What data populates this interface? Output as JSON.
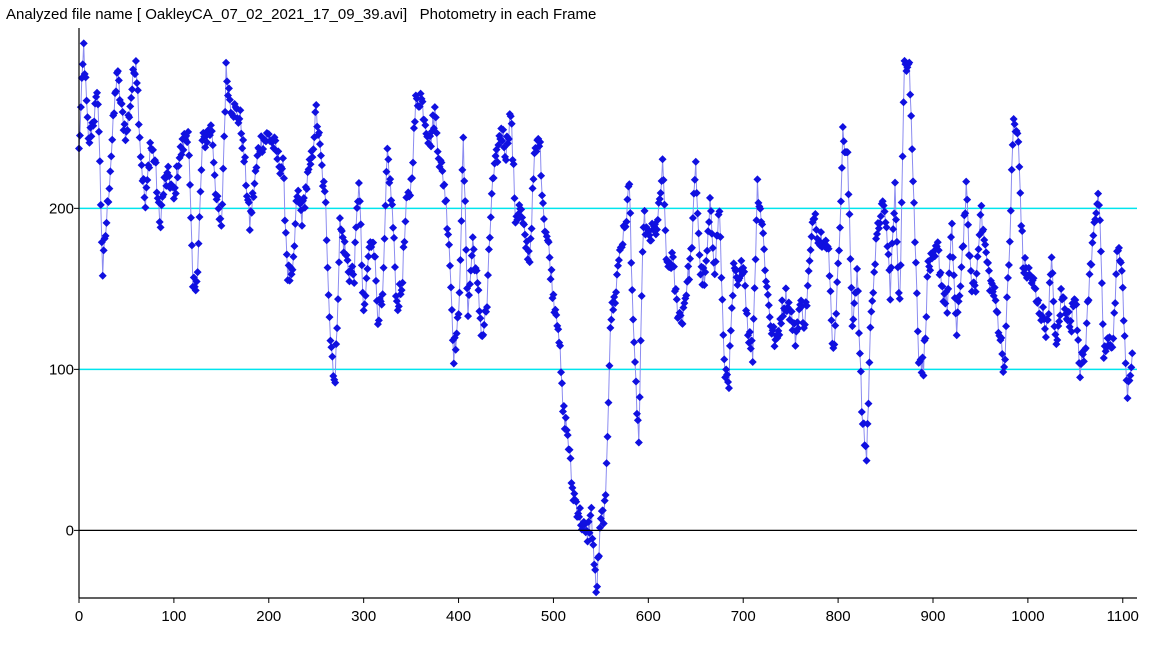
{
  "window": {
    "title": "Analyzed file name [ OakleyCA_07_02_2021_17_09_39.avi]   Photometry in each Frame"
  },
  "colors": {
    "background": "#ffffff",
    "series_line": "#8c8cf0",
    "series_marker": "#1010e0",
    "reference_lines": "#00e5ee",
    "zero_line": "#000000",
    "axis": "#000000"
  },
  "chart_data": {
    "type": "line",
    "title": "",
    "xlabel": "",
    "ylabel": "",
    "xlim": [
      0,
      1115
    ],
    "ylim": [
      -42,
      312
    ],
    "x_ticks": [
      0,
      100,
      200,
      300,
      400,
      500,
      600,
      700,
      800,
      900,
      1000,
      1100
    ],
    "y_ticks": [
      0,
      100,
      200
    ],
    "y_tick_labels": [
      "0",
      "100",
      "200"
    ],
    "reference_lines": [
      100,
      200
    ],
    "zero_line": 0,
    "grid": false,
    "legend": "none",
    "markers": "diamond",
    "series": [
      {
        "keypoints": [
          [
            0,
            235
          ],
          [
            5,
            300
          ],
          [
            10,
            240
          ],
          [
            15,
            255
          ],
          [
            20,
            270
          ],
          [
            25,
            160
          ],
          [
            30,
            200
          ],
          [
            40,
            285
          ],
          [
            45,
            260
          ],
          [
            50,
            245
          ],
          [
            60,
            295
          ],
          [
            65,
            235
          ],
          [
            70,
            200
          ],
          [
            75,
            240
          ],
          [
            80,
            230
          ],
          [
            85,
            190
          ],
          [
            90,
            215
          ],
          [
            95,
            220
          ],
          [
            100,
            205
          ],
          [
            105,
            230
          ],
          [
            110,
            240
          ],
          [
            115,
            250
          ],
          [
            120,
            150
          ],
          [
            125,
            160
          ],
          [
            130,
            240
          ],
          [
            140,
            250
          ],
          [
            145,
            205
          ],
          [
            150,
            185
          ],
          [
            155,
            285
          ],
          [
            160,
            265
          ],
          [
            170,
            255
          ],
          [
            175,
            225
          ],
          [
            180,
            190
          ],
          [
            185,
            215
          ],
          [
            190,
            240
          ],
          [
            200,
            245
          ],
          [
            205,
            240
          ],
          [
            210,
            230
          ],
          [
            215,
            225
          ],
          [
            220,
            160
          ],
          [
            225,
            155
          ],
          [
            230,
            210
          ],
          [
            235,
            195
          ],
          [
            240,
            215
          ],
          [
            245,
            230
          ],
          [
            250,
            260
          ],
          [
            255,
            230
          ],
          [
            260,
            200
          ],
          [
            265,
            120
          ],
          [
            270,
            90
          ],
          [
            275,
            190
          ],
          [
            280,
            175
          ],
          [
            285,
            160
          ],
          [
            290,
            160
          ],
          [
            295,
            220
          ],
          [
            300,
            130
          ],
          [
            305,
            170
          ],
          [
            310,
            185
          ],
          [
            315,
            135
          ],
          [
            320,
            140
          ],
          [
            325,
            235
          ],
          [
            330,
            200
          ],
          [
            335,
            140
          ],
          [
            340,
            150
          ],
          [
            345,
            200
          ],
          [
            350,
            215
          ],
          [
            355,
            265
          ],
          [
            360,
            270
          ],
          [
            365,
            255
          ],
          [
            370,
            240
          ],
          [
            375,
            260
          ],
          [
            380,
            230
          ],
          [
            385,
            215
          ],
          [
            390,
            180
          ],
          [
            395,
            110
          ],
          [
            400,
            130
          ],
          [
            405,
            240
          ],
          [
            410,
            135
          ],
          [
            415,
            180
          ],
          [
            420,
            150
          ],
          [
            425,
            120
          ],
          [
            430,
            140
          ],
          [
            435,
            210
          ],
          [
            440,
            230
          ],
          [
            445,
            250
          ],
          [
            450,
            235
          ],
          [
            455,
            260
          ],
          [
            460,
            195
          ],
          [
            465,
            200
          ],
          [
            470,
            180
          ],
          [
            475,
            170
          ],
          [
            480,
            230
          ],
          [
            485,
            245
          ],
          [
            490,
            195
          ],
          [
            495,
            175
          ],
          [
            500,
            145
          ],
          [
            505,
            130
          ],
          [
            510,
            75
          ],
          [
            515,
            60
          ],
          [
            520,
            25
          ],
          [
            525,
            15
          ],
          [
            530,
            5
          ],
          [
            535,
            -5
          ],
          [
            540,
            10
          ],
          [
            545,
            -40
          ],
          [
            550,
            5
          ],
          [
            555,
            15
          ],
          [
            560,
            130
          ],
          [
            565,
            145
          ],
          [
            570,
            175
          ],
          [
            575,
            185
          ],
          [
            580,
            215
          ],
          [
            585,
            110
          ],
          [
            590,
            55
          ],
          [
            595,
            195
          ],
          [
            600,
            180
          ],
          [
            605,
            185
          ],
          [
            610,
            190
          ],
          [
            615,
            225
          ],
          [
            620,
            160
          ],
          [
            625,
            170
          ],
          [
            630,
            140
          ],
          [
            635,
            130
          ],
          [
            640,
            150
          ],
          [
            645,
            170
          ],
          [
            650,
            225
          ],
          [
            655,
            160
          ],
          [
            660,
            155
          ],
          [
            665,
            200
          ],
          [
            670,
            165
          ],
          [
            675,
            200
          ],
          [
            680,
            100
          ],
          [
            685,
            95
          ],
          [
            690,
            160
          ],
          [
            695,
            150
          ],
          [
            700,
            170
          ],
          [
            705,
            125
          ],
          [
            710,
            110
          ],
          [
            715,
            215
          ],
          [
            720,
            190
          ],
          [
            725,
            150
          ],
          [
            730,
            125
          ],
          [
            735,
            115
          ],
          [
            740,
            135
          ],
          [
            745,
            145
          ],
          [
            750,
            135
          ],
          [
            755,
            120
          ],
          [
            760,
            140
          ],
          [
            765,
            130
          ],
          [
            770,
            165
          ],
          [
            775,
            200
          ],
          [
            780,
            180
          ],
          [
            785,
            185
          ],
          [
            790,
            170
          ],
          [
            795,
            110
          ],
          [
            800,
            160
          ],
          [
            805,
            245
          ],
          [
            810,
            230
          ],
          [
            815,
            130
          ],
          [
            820,
            160
          ],
          [
            825,
            75
          ],
          [
            830,
            45
          ],
          [
            835,
            140
          ],
          [
            840,
            175
          ],
          [
            845,
            200
          ],
          [
            850,
            195
          ],
          [
            855,
            150
          ],
          [
            860,
            210
          ],
          [
            865,
            140
          ],
          [
            870,
            290
          ],
          [
            875,
            295
          ],
          [
            880,
            200
          ],
          [
            885,
            110
          ],
          [
            890,
            100
          ],
          [
            895,
            165
          ],
          [
            900,
            165
          ],
          [
            905,
            175
          ],
          [
            910,
            150
          ],
          [
            915,
            140
          ],
          [
            920,
            185
          ],
          [
            925,
            120
          ],
          [
            930,
            165
          ],
          [
            935,
            210
          ],
          [
            940,
            155
          ],
          [
            945,
            150
          ],
          [
            950,
            200
          ],
          [
            955,
            175
          ],
          [
            960,
            155
          ],
          [
            965,
            145
          ],
          [
            970,
            125
          ],
          [
            975,
            100
          ],
          [
            980,
            165
          ],
          [
            985,
            255
          ],
          [
            990,
            240
          ],
          [
            995,
            165
          ],
          [
            1000,
            160
          ],
          [
            1005,
            155
          ],
          [
            1010,
            140
          ],
          [
            1015,
            135
          ],
          [
            1020,
            125
          ],
          [
            1025,
            165
          ],
          [
            1030,
            110
          ],
          [
            1035,
            145
          ],
          [
            1040,
            140
          ],
          [
            1045,
            125
          ],
          [
            1050,
            150
          ],
          [
            1055,
            100
          ],
          [
            1060,
            110
          ],
          [
            1065,
            155
          ],
          [
            1070,
            195
          ],
          [
            1075,
            205
          ],
          [
            1080,
            110
          ],
          [
            1085,
            115
          ],
          [
            1090,
            120
          ],
          [
            1095,
            180
          ],
          [
            1100,
            150
          ],
          [
            1105,
            80
          ],
          [
            1110,
            110
          ]
        ]
      }
    ]
  }
}
